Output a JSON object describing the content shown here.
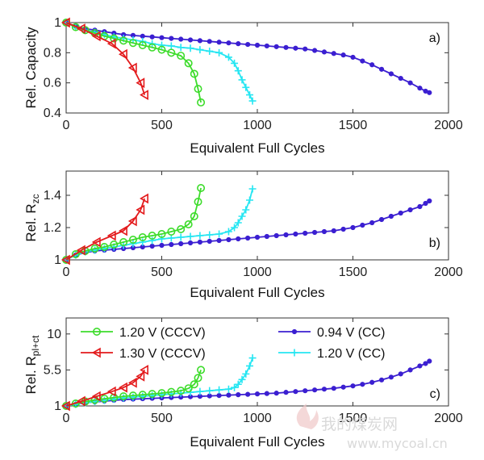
{
  "chart_data": [
    {
      "type": "line",
      "panel_label": "a)",
      "ylabel": "Rel. Capacity",
      "xlabel": "Equivalent Full Cycles",
      "xlim": [
        0,
        2000
      ],
      "ylim": [
        0.4,
        1.0
      ],
      "xticks": [
        "0",
        "500",
        "1000",
        "1500",
        "2000"
      ],
      "yticks": [
        "0.4",
        "0.6",
        "0.8",
        "1"
      ],
      "series": [
        {
          "name": "0.94 V (CC)",
          "color": "#3b1fd1",
          "marker": "dot",
          "x": [
            0,
            50,
            100,
            150,
            200,
            250,
            300,
            350,
            400,
            450,
            500,
            550,
            600,
            650,
            700,
            750,
            800,
            850,
            900,
            950,
            1000,
            1050,
            1100,
            1150,
            1200,
            1250,
            1300,
            1350,
            1400,
            1450,
            1500,
            1550,
            1600,
            1650,
            1700,
            1750,
            1800,
            1850,
            1880,
            1900
          ],
          "y": [
            1.0,
            0.975,
            0.96,
            0.95,
            0.94,
            0.93,
            0.92,
            0.915,
            0.91,
            0.905,
            0.9,
            0.895,
            0.89,
            0.885,
            0.88,
            0.875,
            0.87,
            0.865,
            0.86,
            0.855,
            0.85,
            0.845,
            0.84,
            0.835,
            0.83,
            0.825,
            0.815,
            0.805,
            0.795,
            0.785,
            0.77,
            0.745,
            0.72,
            0.69,
            0.66,
            0.63,
            0.6,
            0.565,
            0.545,
            0.535
          ]
        },
        {
          "name": "1.20 V (CC)",
          "color": "#26e6f2",
          "marker": "plus",
          "x": [
            0,
            50,
            100,
            150,
            200,
            250,
            300,
            350,
            400,
            450,
            500,
            550,
            600,
            650,
            700,
            750,
            800,
            850,
            880,
            900,
            920,
            940,
            960,
            975
          ],
          "y": [
            1.0,
            0.97,
            0.95,
            0.935,
            0.92,
            0.905,
            0.895,
            0.885,
            0.875,
            0.86,
            0.85,
            0.845,
            0.835,
            0.83,
            0.82,
            0.81,
            0.8,
            0.77,
            0.73,
            0.68,
            0.62,
            0.57,
            0.52,
            0.48
          ]
        },
        {
          "name": "1.20 V (CCCV)",
          "color": "#3ddc2b",
          "marker": "circle",
          "x": [
            0,
            50,
            100,
            150,
            200,
            250,
            300,
            350,
            400,
            450,
            500,
            550,
            600,
            640,
            670,
            690,
            705
          ],
          "y": [
            1.0,
            0.97,
            0.95,
            0.93,
            0.91,
            0.895,
            0.88,
            0.865,
            0.85,
            0.835,
            0.82,
            0.8,
            0.78,
            0.73,
            0.66,
            0.56,
            0.47
          ]
        },
        {
          "name": "1.30 V (CCCV)",
          "color": "#e31a1c",
          "marker": "triangle-left",
          "x": [
            0,
            80,
            160,
            240,
            300,
            350,
            390,
            410
          ],
          "y": [
            1.0,
            0.96,
            0.91,
            0.86,
            0.79,
            0.7,
            0.6,
            0.52
          ]
        }
      ]
    },
    {
      "type": "line",
      "panel_label": "b)",
      "ylabel": "Rel. R",
      "ylabel_sub": "zc",
      "xlabel": "Equivalent Full Cycles",
      "xlim": [
        0,
        2000
      ],
      "ylim": [
        1.0,
        1.55
      ],
      "xticks": [
        "0",
        "500",
        "1000",
        "1500",
        "2000"
      ],
      "yticks": [
        "1",
        "1.2",
        "1.4"
      ],
      "series": [
        {
          "name": "0.94 V (CC)",
          "color": "#3b1fd1",
          "marker": "dot",
          "x": [
            0,
            50,
            100,
            150,
            200,
            250,
            300,
            350,
            400,
            450,
            500,
            550,
            600,
            650,
            700,
            750,
            800,
            850,
            900,
            950,
            1000,
            1050,
            1100,
            1150,
            1200,
            1250,
            1300,
            1350,
            1400,
            1450,
            1500,
            1550,
            1600,
            1650,
            1700,
            1750,
            1800,
            1850,
            1880,
            1900
          ],
          "y": [
            1.0,
            1.03,
            1.045,
            1.055,
            1.06,
            1.065,
            1.07,
            1.075,
            1.08,
            1.085,
            1.09,
            1.095,
            1.1,
            1.105,
            1.11,
            1.115,
            1.12,
            1.125,
            1.13,
            1.135,
            1.14,
            1.145,
            1.15,
            1.155,
            1.16,
            1.165,
            1.17,
            1.175,
            1.18,
            1.19,
            1.2,
            1.215,
            1.23,
            1.25,
            1.27,
            1.29,
            1.31,
            1.33,
            1.35,
            1.365
          ]
        },
        {
          "name": "1.20 V (CC)",
          "color": "#26e6f2",
          "marker": "plus",
          "x": [
            0,
            50,
            100,
            150,
            200,
            250,
            300,
            350,
            400,
            450,
            500,
            550,
            600,
            650,
            700,
            750,
            800,
            850,
            880,
            900,
            920,
            940,
            960,
            975
          ],
          "y": [
            1.0,
            1.03,
            1.05,
            1.06,
            1.07,
            1.08,
            1.09,
            1.1,
            1.11,
            1.12,
            1.13,
            1.135,
            1.14,
            1.145,
            1.15,
            1.155,
            1.16,
            1.175,
            1.2,
            1.23,
            1.27,
            1.31,
            1.37,
            1.44
          ]
        },
        {
          "name": "1.20 V (CCCV)",
          "color": "#3ddc2b",
          "marker": "circle",
          "x": [
            0,
            50,
            100,
            150,
            200,
            250,
            300,
            350,
            400,
            450,
            500,
            550,
            600,
            640,
            670,
            690,
            705
          ],
          "y": [
            1.0,
            1.035,
            1.055,
            1.07,
            1.08,
            1.095,
            1.11,
            1.125,
            1.14,
            1.15,
            1.16,
            1.175,
            1.19,
            1.22,
            1.27,
            1.36,
            1.445
          ]
        },
        {
          "name": "1.30 V (CCCV)",
          "color": "#e31a1c",
          "marker": "triangle-left",
          "x": [
            0,
            80,
            160,
            240,
            300,
            350,
            390,
            410
          ],
          "y": [
            1.0,
            1.06,
            1.11,
            1.15,
            1.18,
            1.24,
            1.31,
            1.38
          ]
        }
      ]
    },
    {
      "type": "line",
      "panel_label": "c)",
      "ylabel": "Rel. R",
      "ylabel_sub": "pl+ct",
      "xlabel": "Equivalent Full Cycles",
      "xlim": [
        0,
        2000
      ],
      "ylim": [
        1,
        12
      ],
      "xticks": [
        "0",
        "500",
        "1000",
        "1500",
        "2000"
      ],
      "yticks": [
        "1",
        "5.5",
        "10"
      ],
      "legend": "top",
      "series": [
        {
          "name": "0.94 V (CC)",
          "color": "#3b1fd1",
          "marker": "dot",
          "x": [
            0,
            50,
            100,
            150,
            200,
            250,
            300,
            350,
            400,
            450,
            500,
            550,
            600,
            650,
            700,
            750,
            800,
            850,
            900,
            950,
            1000,
            1050,
            1100,
            1150,
            1200,
            1250,
            1300,
            1350,
            1400,
            1450,
            1500,
            1550,
            1600,
            1650,
            1700,
            1750,
            1800,
            1850,
            1880,
            1900
          ],
          "y": [
            1.0,
            1.2,
            1.4,
            1.5,
            1.6,
            1.7,
            1.8,
            1.85,
            1.9,
            1.95,
            2.0,
            2.05,
            2.1,
            2.15,
            2.2,
            2.25,
            2.3,
            2.35,
            2.4,
            2.45,
            2.5,
            2.55,
            2.6,
            2.7,
            2.8,
            2.9,
            3.0,
            3.1,
            3.2,
            3.35,
            3.5,
            3.7,
            3.95,
            4.25,
            4.6,
            5.0,
            5.5,
            6.0,
            6.3,
            6.6
          ]
        },
        {
          "name": "1.20 V (CC)",
          "color": "#26e6f2",
          "marker": "plus",
          "x": [
            0,
            50,
            100,
            150,
            200,
            250,
            300,
            350,
            400,
            450,
            500,
            550,
            600,
            650,
            700,
            750,
            800,
            850,
            880,
            900,
            920,
            940,
            960,
            975
          ],
          "y": [
            1.0,
            1.2,
            1.4,
            1.55,
            1.7,
            1.85,
            2.0,
            2.1,
            2.2,
            2.3,
            2.4,
            2.5,
            2.6,
            2.7,
            2.8,
            2.9,
            3.0,
            3.1,
            3.3,
            3.7,
            4.3,
            5.0,
            6.0,
            7.0
          ]
        },
        {
          "name": "1.20 V (CCCV)",
          "color": "#3ddc2b",
          "marker": "circle",
          "x": [
            0,
            50,
            100,
            150,
            200,
            250,
            300,
            350,
            400,
            450,
            500,
            550,
            600,
            640,
            670,
            690,
            705
          ],
          "y": [
            1.0,
            1.3,
            1.55,
            1.75,
            1.9,
            2.05,
            2.2,
            2.3,
            2.4,
            2.5,
            2.6,
            2.75,
            2.9,
            3.2,
            3.7,
            4.5,
            5.5
          ]
        },
        {
          "name": "1.30 V (CCCV)",
          "color": "#e31a1c",
          "marker": "triangle-left",
          "x": [
            0,
            80,
            160,
            240,
            300,
            350,
            390,
            410
          ],
          "y": [
            1.0,
            1.6,
            2.2,
            2.8,
            3.3,
            3.9,
            4.7,
            5.5
          ]
        }
      ]
    }
  ],
  "legend_entries": [
    "1.20 V (CCCV)",
    "1.30 V (CCCV)",
    "0.94 V (CC)",
    "1.20 V (CC)"
  ],
  "watermark": {
    "text": "我的煤炭网",
    "url": "www.mycoal.cn"
  }
}
